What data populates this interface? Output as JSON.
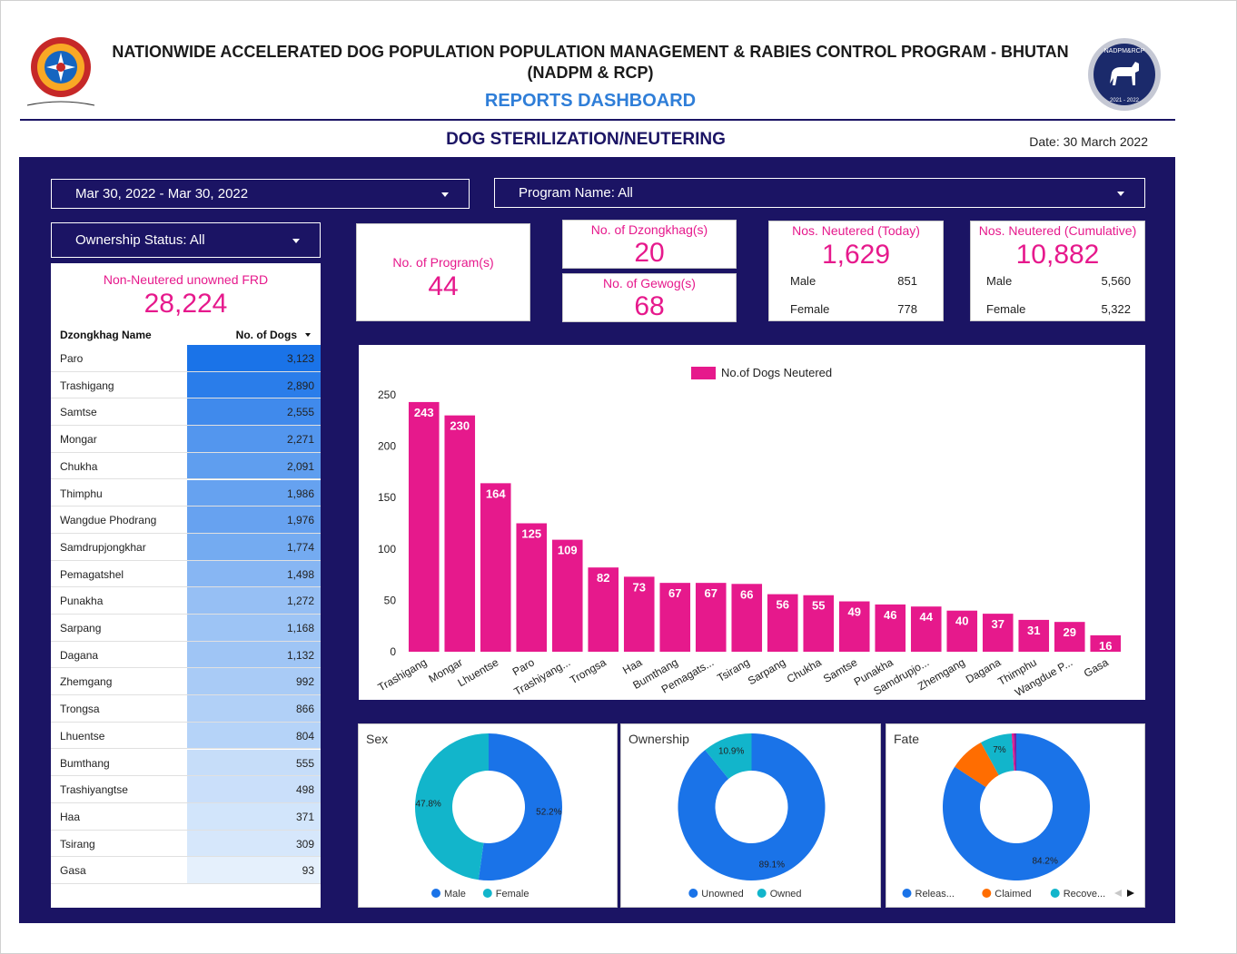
{
  "header": {
    "title_line1": "NATIONWIDE ACCELERATED DOG POPULATION POPULATION MANAGEMENT & RABIES CONTROL PROGRAM - BHUTAN",
    "title_line2": "(NADPM & RCP)",
    "subtitle": "REPORTS DASHBOARD",
    "section_title": "DOG STERILIZATION/NEUTERING",
    "date": "Date: 30 March 2022",
    "right_logo_top": "NADPM&RCP",
    "right_logo_bottom": "2021 - 2022"
  },
  "filters": {
    "date_range": "Mar 30, 2022 - Mar 30, 2022",
    "program": "Program Name: All",
    "ownership": "Ownership Status: All"
  },
  "kpis": {
    "programs": {
      "label": "No. of Program(s)",
      "value": "44"
    },
    "dzongkhags": {
      "label": "No. of Dzongkhag(s)",
      "value": "20"
    },
    "gewogs": {
      "label": "No. of Gewog(s)",
      "value": "68"
    },
    "today": {
      "label": "Nos. Neutered (Today)",
      "value": "1,629",
      "male_label": "Male",
      "male": "851",
      "female_label": "Female",
      "female": "778"
    },
    "cumulative": {
      "label": "Nos. Neutered (Cumulative)",
      "value": "10,882",
      "male_label": "Male",
      "male": "5,560",
      "female_label": "Female",
      "female": "5,322"
    }
  },
  "frd_table": {
    "label": "Non-Neutered unowned FRD",
    "total": "28,224",
    "col_name": "Dzongkhag Name",
    "col_value": "No. of Dogs",
    "rows": [
      {
        "name": "Paro",
        "value": "3,123",
        "n": 3123
      },
      {
        "name": "Trashigang",
        "value": "2,890",
        "n": 2890
      },
      {
        "name": "Samtse",
        "value": "2,555",
        "n": 2555
      },
      {
        "name": "Mongar",
        "value": "2,271",
        "n": 2271
      },
      {
        "name": "Chukha",
        "value": "2,091",
        "n": 2091
      },
      {
        "name": "Thimphu",
        "value": "1,986",
        "n": 1986
      },
      {
        "name": "Wangdue Phodrang",
        "value": "1,976",
        "n": 1976
      },
      {
        "name": "Samdrupjongkhar",
        "value": "1,774",
        "n": 1774
      },
      {
        "name": "Pemagatshel",
        "value": "1,498",
        "n": 1498
      },
      {
        "name": "Punakha",
        "value": "1,272",
        "n": 1272
      },
      {
        "name": "Sarpang",
        "value": "1,168",
        "n": 1168
      },
      {
        "name": "Dagana",
        "value": "1,132",
        "n": 1132
      },
      {
        "name": "Zhemgang",
        "value": "992",
        "n": 992
      },
      {
        "name": "Trongsa",
        "value": "866",
        "n": 866
      },
      {
        "name": "Lhuentse",
        "value": "804",
        "n": 804
      },
      {
        "name": "Bumthang",
        "value": "555",
        "n": 555
      },
      {
        "name": "Trashiyangtse",
        "value": "498",
        "n": 498
      },
      {
        "name": "Haa",
        "value": "371",
        "n": 371
      },
      {
        "name": "Tsirang",
        "value": "309",
        "n": 309
      },
      {
        "name": "Gasa",
        "value": "93",
        "n": 93
      }
    ]
  },
  "chart_data": [
    {
      "type": "bar",
      "legend": "No.of Dogs Neutered",
      "color": "#e6198c",
      "categories": [
        "Trashigang",
        "Mongar",
        "Lhuentse",
        "Paro",
        "Trashiyang...",
        "Trongsa",
        "Haa",
        "Bumthang",
        "Pemagats...",
        "Tsirang",
        "Sarpang",
        "Chukha",
        "Samtse",
        "Punakha",
        "Samdrupjo...",
        "Zhemgang",
        "Dagana",
        "Thimphu",
        "Wangdue P...",
        "Gasa"
      ],
      "values": [
        243,
        230,
        164,
        125,
        109,
        82,
        73,
        67,
        67,
        66,
        56,
        55,
        49,
        46,
        44,
        40,
        37,
        31,
        29,
        16
      ],
      "ylim": [
        0,
        250
      ],
      "yticks": [
        0,
        50,
        100,
        150,
        200,
        250
      ]
    },
    {
      "type": "pie",
      "title": "Sex",
      "slices": [
        {
          "name": "Male",
          "value": 52.2,
          "label": "52.2%",
          "color": "#1a73e8"
        },
        {
          "name": "Female",
          "value": 47.8,
          "label": "47.8%",
          "color": "#12b5cb"
        }
      ]
    },
    {
      "type": "pie",
      "title": "Ownership",
      "slices": [
        {
          "name": "Unowned",
          "value": 89.1,
          "label": "89.1%",
          "color": "#1a73e8"
        },
        {
          "name": "Owned",
          "value": 10.9,
          "label": "10.9%",
          "color": "#12b5cb"
        }
      ]
    },
    {
      "type": "pie",
      "title": "Fate",
      "slices": [
        {
          "name": "Releas...",
          "value": 84.2,
          "label": "84.2%",
          "color": "#1a73e8"
        },
        {
          "name": "Claimed",
          "value": 7.8,
          "label": "",
          "color": "#ff6d01"
        },
        {
          "name": "Recove...",
          "value": 7.0,
          "label": "7%",
          "color": "#12b5cb"
        },
        {
          "name": "",
          "value": 0.5,
          "label": "",
          "color": "#e6198c"
        },
        {
          "name": "",
          "value": 0.5,
          "label": "",
          "color": "#7b1fa2"
        }
      ]
    }
  ]
}
